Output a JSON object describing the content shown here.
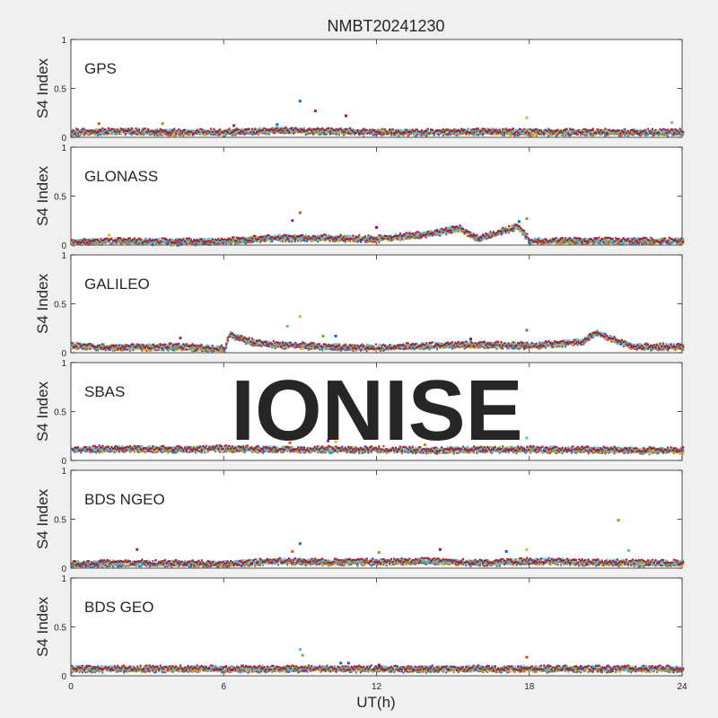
{
  "chart_data": {
    "type": "scatter",
    "title": "NMBT20241230",
    "xlabel": "UT(h)",
    "ylabel": "S4 Index",
    "xlim": [
      0,
      24
    ],
    "ylim": [
      0,
      1
    ],
    "xticks": [
      "0",
      "6",
      "12",
      "18",
      "24"
    ],
    "yticks": [
      "0",
      "0.5",
      "1"
    ],
    "watermark": "IONISE",
    "series_colors": [
      "#0072BD",
      "#D95319",
      "#EDB120",
      "#7E2F8E",
      "#77AC30",
      "#4DBEEE",
      "#A2142F"
    ],
    "panels": [
      {
        "system": "GPS",
        "baseline": [
          [
            0,
            0.06
          ],
          [
            2,
            0.07
          ],
          [
            4,
            0.06
          ],
          [
            6,
            0.06
          ],
          [
            8,
            0.08
          ],
          [
            10,
            0.07
          ],
          [
            12,
            0.06
          ],
          [
            14,
            0.06
          ],
          [
            16,
            0.07
          ],
          [
            18,
            0.06
          ],
          [
            20,
            0.06
          ],
          [
            22,
            0.06
          ],
          [
            24,
            0.06
          ]
        ],
        "spikes": [
          [
            9.0,
            0.37
          ],
          [
            9.6,
            0.27
          ],
          [
            10.8,
            0.22
          ],
          [
            17.9,
            0.2
          ],
          [
            23.6,
            0.15
          ],
          [
            1.1,
            0.14
          ],
          [
            3.6,
            0.14
          ],
          [
            8.1,
            0.13
          ],
          [
            6.4,
            0.12
          ]
        ]
      },
      {
        "system": "GLONASS",
        "baseline": [
          [
            0,
            0.04
          ],
          [
            2,
            0.05
          ],
          [
            4,
            0.04
          ],
          [
            6,
            0.05
          ],
          [
            8,
            0.08
          ],
          [
            10,
            0.08
          ],
          [
            12,
            0.07
          ],
          [
            14,
            0.12
          ],
          [
            15.2,
            0.18
          ],
          [
            16,
            0.07
          ],
          [
            17.5,
            0.2
          ],
          [
            18,
            0.05
          ],
          [
            20,
            0.05
          ],
          [
            22,
            0.05
          ],
          [
            24,
            0.05
          ]
        ],
        "spikes": [
          [
            9.0,
            0.33
          ],
          [
            17.9,
            0.27
          ],
          [
            17.6,
            0.24
          ],
          [
            8.7,
            0.25
          ],
          [
            12.0,
            0.18
          ],
          [
            1.5,
            0.1
          ]
        ]
      },
      {
        "system": "GALILEO",
        "baseline": [
          [
            0,
            0.08
          ],
          [
            2,
            0.06
          ],
          [
            4,
            0.07
          ],
          [
            6,
            0.05
          ],
          [
            6.2,
            0.2
          ],
          [
            7,
            0.12
          ],
          [
            8,
            0.09
          ],
          [
            10,
            0.07
          ],
          [
            12,
            0.06
          ],
          [
            14,
            0.08
          ],
          [
            16,
            0.09
          ],
          [
            18,
            0.08
          ],
          [
            20,
            0.12
          ],
          [
            20.6,
            0.21
          ],
          [
            22,
            0.07
          ],
          [
            24,
            0.07
          ]
        ],
        "spikes": [
          [
            9.0,
            0.37
          ],
          [
            8.5,
            0.27
          ],
          [
            17.9,
            0.23
          ],
          [
            9.9,
            0.17
          ],
          [
            10.4,
            0.17
          ],
          [
            4.3,
            0.15
          ],
          [
            15.7,
            0.14
          ]
        ]
      },
      {
        "system": "SBAS",
        "baseline": [
          [
            0,
            0.12
          ],
          [
            2,
            0.13
          ],
          [
            4,
            0.12
          ],
          [
            6,
            0.13
          ],
          [
            8,
            0.12
          ],
          [
            10,
            0.12
          ],
          [
            12,
            0.12
          ],
          [
            14,
            0.11
          ],
          [
            16,
            0.12
          ],
          [
            18,
            0.12
          ],
          [
            20,
            0.12
          ],
          [
            22,
            0.11
          ],
          [
            24,
            0.11
          ]
        ],
        "spikes": [
          [
            10.1,
            0.2
          ],
          [
            9.0,
            0.29
          ],
          [
            10.4,
            0.19
          ],
          [
            17.9,
            0.23
          ],
          [
            8.6,
            0.18
          ],
          [
            13.9,
            0.16
          ]
        ]
      },
      {
        "system": "BDS NGEO",
        "baseline": [
          [
            0,
            0.05
          ],
          [
            2,
            0.06
          ],
          [
            4,
            0.06
          ],
          [
            6,
            0.05
          ],
          [
            8,
            0.08
          ],
          [
            10,
            0.07
          ],
          [
            12,
            0.07
          ],
          [
            14,
            0.08
          ],
          [
            16,
            0.06
          ],
          [
            18,
            0.08
          ],
          [
            20,
            0.07
          ],
          [
            22,
            0.06
          ],
          [
            24,
            0.06
          ]
        ],
        "spikes": [
          [
            21.5,
            0.49
          ],
          [
            9.0,
            0.25
          ],
          [
            2.6,
            0.19
          ],
          [
            14.5,
            0.19
          ],
          [
            17.9,
            0.19
          ],
          [
            21.9,
            0.18
          ],
          [
            8.7,
            0.17
          ],
          [
            12.1,
            0.16
          ],
          [
            17.1,
            0.17
          ]
        ]
      },
      {
        "system": "BDS GEO",
        "baseline": [
          [
            0,
            0.08
          ],
          [
            4,
            0.08
          ],
          [
            8,
            0.08
          ],
          [
            12,
            0.08
          ],
          [
            16,
            0.08
          ],
          [
            20,
            0.08
          ],
          [
            24,
            0.08
          ]
        ],
        "spikes": [
          [
            9.0,
            0.27
          ],
          [
            17.9,
            0.19
          ],
          [
            9.1,
            0.21
          ],
          [
            10.6,
            0.13
          ],
          [
            10.9,
            0.13
          ],
          [
            12.1,
            0.11
          ]
        ]
      }
    ]
  }
}
